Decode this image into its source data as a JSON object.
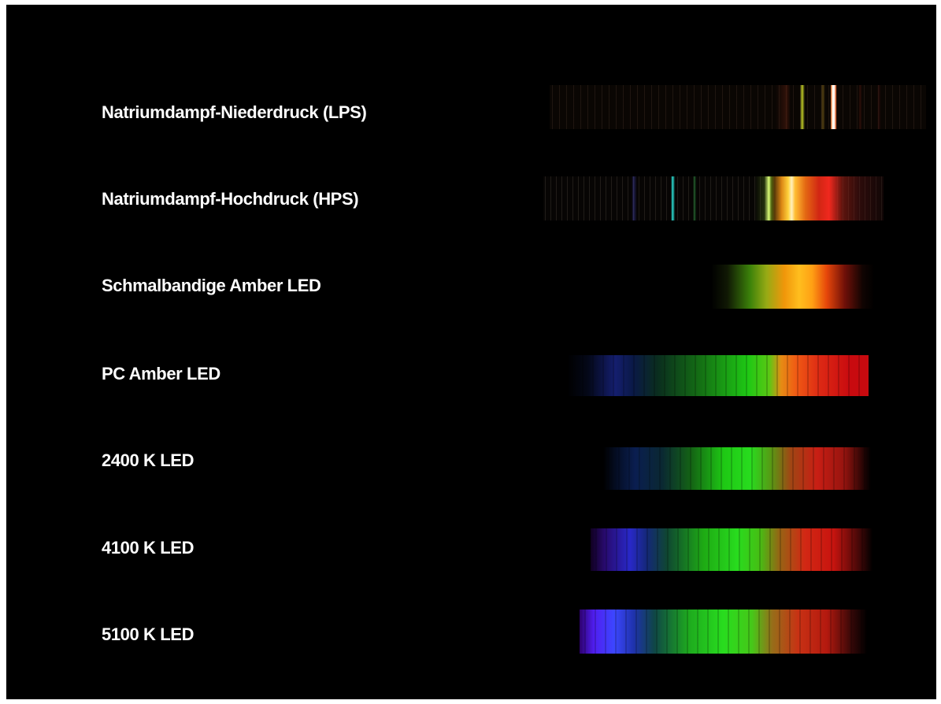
{
  "rows": [
    {
      "label": "Natriumdampf-Niederdruck (LPS)",
      "spectrum": "sodium-lps-spectrum"
    },
    {
      "label": "Natriumdampf-Hochdruck (HPS)",
      "spectrum": "sodium-hps-spectrum"
    },
    {
      "label": "Schmalbandige Amber LED",
      "spectrum": "narrowband-amber-led-spectrum"
    },
    {
      "label": "PC Amber LED",
      "spectrum": "pc-amber-led-spectrum"
    },
    {
      "label": "2400 K LED",
      "spectrum": "led-2400k-spectrum"
    },
    {
      "label": "4100 K LED",
      "spectrum": "led-4100k-spectrum"
    },
    {
      "label": "5100 K LED",
      "spectrum": "led-5100k-spectrum"
    }
  ],
  "colors": {
    "background": "#000000",
    "text": "#ffffff",
    "frame": "#ffffff"
  }
}
